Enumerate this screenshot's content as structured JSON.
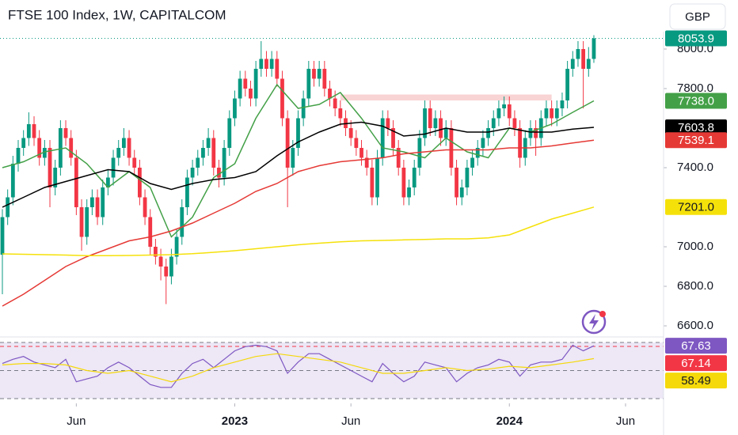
{
  "chart_data": {
    "type": "candlestick",
    "title": "FTSE 100 Index, 1W, CAPITALCOM",
    "currency": "GBP",
    "up_color": "#089981",
    "down_color": "#f23645",
    "open": [
      6960,
      7150,
      7250,
      7420,
      7500,
      7550,
      7620,
      7550,
      7450,
      7500,
      7300,
      7400,
      7600,
      7550,
      7450,
      7200,
      7050,
      7200,
      7250,
      7150,
      7300,
      7350,
      7450,
      7500,
      7550,
      7450,
      7400,
      7250,
      7150,
      7000,
      6950,
      6900,
      6850,
      6950,
      7050,
      7200,
      7350,
      7400,
      7450,
      7500,
      7550,
      7400,
      7350,
      7500,
      7650,
      7750,
      7850,
      7800,
      7750,
      7900,
      7950,
      7900,
      7950,
      7850,
      7650,
      7400,
      7500,
      7650,
      7750,
      7900,
      7850,
      7900,
      7800,
      7750,
      7700,
      7650,
      7600,
      7550,
      7500,
      7450,
      7400,
      7250,
      7450,
      7650,
      7600,
      7500,
      7400,
      7250,
      7300,
      7400,
      7550,
      7700,
      7600,
      7650,
      7550,
      7600,
      7400,
      7250,
      7300,
      7400,
      7450,
      7500,
      7550,
      7600,
      7650,
      7700,
      7720,
      7650,
      7600,
      7450,
      7550,
      7600,
      7550,
      7650,
      7700,
      7650,
      7700,
      7740,
      7900,
      7950,
      8000,
      7900,
      7950
    ],
    "high": [
      7190,
      7290,
      7460,
      7540,
      7590,
      7680,
      7660,
      7590,
      7540,
      7540,
      7440,
      7640,
      7640,
      7590,
      7490,
      7240,
      7240,
      7290,
      7290,
      7340,
      7390,
      7490,
      7540,
      7600,
      7590,
      7490,
      7440,
      7290,
      7190,
      7040,
      6990,
      6940,
      6990,
      7090,
      7240,
      7390,
      7440,
      7490,
      7540,
      7600,
      7590,
      7440,
      7540,
      7690,
      7790,
      7890,
      7890,
      7840,
      7940,
      8040,
      7990,
      7990,
      7990,
      7890,
      7690,
      7540,
      7690,
      7790,
      7940,
      7940,
      7940,
      7940,
      7840,
      7790,
      7740,
      7690,
      7640,
      7590,
      7540,
      7490,
      7440,
      7490,
      7690,
      7690,
      7640,
      7540,
      7440,
      7340,
      7440,
      7590,
      7740,
      7740,
      7690,
      7690,
      7640,
      7640,
      7440,
      7340,
      7440,
      7490,
      7540,
      7590,
      7640,
      7690,
      7740,
      7760,
      7760,
      7690,
      7640,
      7590,
      7640,
      7640,
      7690,
      7740,
      7740,
      7740,
      7780,
      7940,
      7990,
      8040,
      8040,
      8010,
      8070
    ],
    "low": [
      6760,
      7110,
      7210,
      7380,
      7460,
      7510,
      7510,
      7410,
      7410,
      7200,
      7260,
      7360,
      7510,
      7410,
      7160,
      6980,
      7010,
      7160,
      7110,
      7110,
      7260,
      7310,
      7410,
      7460,
      7410,
      7360,
      7210,
      7110,
      6960,
      6910,
      6830,
      6710,
      6810,
      6910,
      7010,
      7160,
      7310,
      7360,
      7410,
      7460,
      7360,
      7300,
      7310,
      7460,
      7610,
      7710,
      7760,
      7710,
      7710,
      7860,
      7860,
      7860,
      7810,
      7610,
      7200,
      7360,
      7460,
      7610,
      7710,
      7810,
      7810,
      7760,
      7710,
      7660,
      7610,
      7560,
      7510,
      7460,
      7410,
      7360,
      7210,
      7210,
      7410,
      7560,
      7460,
      7360,
      7210,
      7210,
      7260,
      7360,
      7510,
      7560,
      7560,
      7510,
      7510,
      7360,
      7210,
      7210,
      7260,
      7360,
      7410,
      7460,
      7510,
      7560,
      7610,
      7660,
      7610,
      7560,
      7400,
      7410,
      7510,
      7460,
      7510,
      7610,
      7610,
      7610,
      7660,
      7700,
      7860,
      7910,
      7700,
      7860,
      7930
    ],
    "close": [
      7150,
      7250,
      7420,
      7500,
      7550,
      7620,
      7550,
      7450,
      7500,
      7300,
      7400,
      7600,
      7550,
      7450,
      7200,
      7050,
      7200,
      7250,
      7150,
      7300,
      7350,
      7450,
      7500,
      7550,
      7450,
      7400,
      7250,
      7150,
      7000,
      6950,
      6900,
      6850,
      6950,
      7050,
      7200,
      7350,
      7400,
      7450,
      7500,
      7550,
      7400,
      7350,
      7500,
      7650,
      7750,
      7850,
      7800,
      7750,
      7900,
      7950,
      7900,
      7950,
      7850,
      7650,
      7400,
      7500,
      7650,
      7750,
      7900,
      7850,
      7900,
      7800,
      7750,
      7700,
      7650,
      7600,
      7550,
      7500,
      7450,
      7400,
      7250,
      7450,
      7650,
      7600,
      7500,
      7400,
      7250,
      7300,
      7400,
      7550,
      7700,
      7600,
      7650,
      7550,
      7600,
      7400,
      7250,
      7300,
      7400,
      7450,
      7500,
      7550,
      7600,
      7650,
      7700,
      7720,
      7650,
      7600,
      7450,
      7550,
      7600,
      7550,
      7650,
      7700,
      7650,
      7700,
      7740,
      7900,
      7950,
      8000,
      7900,
      7950,
      8053.9
    ],
    "xlim": [
      -0.45,
      125.2
    ],
    "xticks": [
      {
        "value": 14,
        "label": "Jun"
      },
      {
        "value": 44,
        "label": "2023"
      },
      {
        "value": 66,
        "label": "Jun"
      },
      {
        "value": 96,
        "label": "2024"
      },
      {
        "value": 118,
        "label": "Jun"
      }
    ],
    "ylim": [
      6548,
      8088
    ],
    "yticks": [
      {
        "value": 8000,
        "label": "8000.0"
      },
      {
        "value": 7800,
        "label": "7800.0"
      },
      {
        "value": 7400,
        "label": "7400.0"
      },
      {
        "value": 7000,
        "label": "7000.0"
      },
      {
        "value": 6800,
        "label": "6800.0"
      },
      {
        "value": 6600,
        "label": "6600.0"
      }
    ],
    "zone": {
      "x": [
        64,
        104
      ],
      "y": [
        7740,
        7770
      ],
      "color": "#f8c9c9"
    },
    "overlays": [
      {
        "color": "#43a047",
        "last_label": "7738.0",
        "x": [
          0,
          4,
          8,
          12,
          16,
          20,
          24,
          28,
          32,
          36,
          40,
          44,
          48,
          52,
          56,
          60,
          64,
          68,
          72,
          76,
          80,
          84,
          88,
          92,
          96,
          100,
          104,
          108,
          112
        ],
        "values": [
          7400,
          7430,
          7480,
          7500,
          7420,
          7300,
          7380,
          7300,
          7050,
          7150,
          7350,
          7420,
          7650,
          7820,
          7700,
          7720,
          7780,
          7650,
          7500,
          7480,
          7450,
          7550,
          7480,
          7450,
          7600,
          7580,
          7620,
          7680,
          7738
        ]
      },
      {
        "color": "#000000",
        "last_label": "7603.8",
        "x": [
          0,
          4,
          8,
          12,
          16,
          20,
          24,
          28,
          32,
          36,
          40,
          44,
          48,
          52,
          56,
          60,
          64,
          68,
          72,
          76,
          80,
          84,
          88,
          92,
          96,
          100,
          104,
          108,
          112
        ],
        "values": [
          7200,
          7250,
          7300,
          7330,
          7360,
          7390,
          7380,
          7320,
          7290,
          7320,
          7340,
          7350,
          7380,
          7460,
          7530,
          7580,
          7620,
          7630,
          7610,
          7560,
          7570,
          7600,
          7580,
          7580,
          7600,
          7580,
          7580,
          7595,
          7603.8
        ]
      },
      {
        "color": "#e53935",
        "last_label": "7539.1",
        "x": [
          0,
          4,
          8,
          12,
          16,
          20,
          24,
          28,
          32,
          36,
          40,
          44,
          48,
          52,
          56,
          60,
          64,
          68,
          72,
          76,
          80,
          84,
          88,
          92,
          96,
          100,
          104,
          108,
          112
        ],
        "values": [
          6700,
          6760,
          6830,
          6900,
          6950,
          6990,
          7030,
          7050,
          7080,
          7120,
          7170,
          7220,
          7280,
          7320,
          7380,
          7410,
          7430,
          7440,
          7450,
          7470,
          7480,
          7490,
          7490,
          7490,
          7500,
          7500,
          7510,
          7525,
          7539.1
        ]
      },
      {
        "color": "#f5e10a",
        "last_label": "7201.0",
        "x": [
          0,
          4,
          8,
          12,
          16,
          20,
          24,
          28,
          32,
          36,
          40,
          44,
          48,
          52,
          56,
          60,
          64,
          68,
          72,
          76,
          80,
          84,
          88,
          92,
          96,
          100,
          104,
          108,
          112
        ],
        "values": [
          6964,
          6962,
          6960,
          6958,
          6955,
          6955,
          6956,
          6958,
          6960,
          6965,
          6972,
          6980,
          6990,
          7000,
          7010,
          7018,
          7025,
          7030,
          7032,
          7035,
          7037,
          7040,
          7040,
          7045,
          7060,
          7100,
          7140,
          7170,
          7201
        ]
      }
    ],
    "rsi_ylim": [
      26.6,
      72.8
    ],
    "rsi_levels": [
      70,
      50,
      30
    ],
    "rsi_band_color": "#ede7f6",
    "rsi": [
      {
        "color": "#7e57c2",
        "x": [
          0,
          2,
          4,
          6,
          8,
          10,
          12,
          14,
          16,
          18,
          20,
          22,
          24,
          26,
          28,
          30,
          32,
          34,
          36,
          38,
          40,
          42,
          44,
          46,
          48,
          50,
          52,
          54,
          56,
          58,
          60,
          62,
          64,
          66,
          68,
          70,
          72,
          74,
          76,
          78,
          80,
          82,
          84,
          86,
          88,
          90,
          92,
          94,
          96,
          98,
          100,
          102,
          104,
          106,
          108,
          110,
          112
        ],
        "values": [
          55,
          58,
          60,
          56,
          54,
          52,
          58,
          42,
          44,
          46,
          52,
          56,
          52,
          46,
          40,
          38,
          38,
          48,
          55,
          58,
          52,
          58,
          64,
          67,
          68,
          67,
          64,
          48,
          56,
          62,
          62,
          58,
          54,
          50,
          46,
          42,
          55,
          48,
          42,
          46,
          56,
          54,
          52,
          42,
          48,
          52,
          54,
          58,
          56,
          46,
          54,
          56,
          56,
          58,
          68,
          64,
          67.63
        ]
      },
      {
        "color": "#f5d90a",
        "x": [
          0,
          4,
          8,
          12,
          16,
          20,
          24,
          28,
          32,
          36,
          40,
          44,
          48,
          52,
          56,
          60,
          64,
          68,
          72,
          76,
          80,
          84,
          88,
          92,
          96,
          100,
          104,
          108,
          112
        ],
        "values": [
          54,
          55,
          55,
          54,
          50,
          48,
          50,
          46,
          42,
          46,
          52,
          56,
          60,
          62,
          60,
          58,
          56,
          52,
          48,
          48,
          50,
          52,
          50,
          51,
          53,
          52,
          54,
          56,
          58.49
        ]
      }
    ],
    "rsi_line": {
      "value": 67.14,
      "color": "#f23645"
    }
  }
}
